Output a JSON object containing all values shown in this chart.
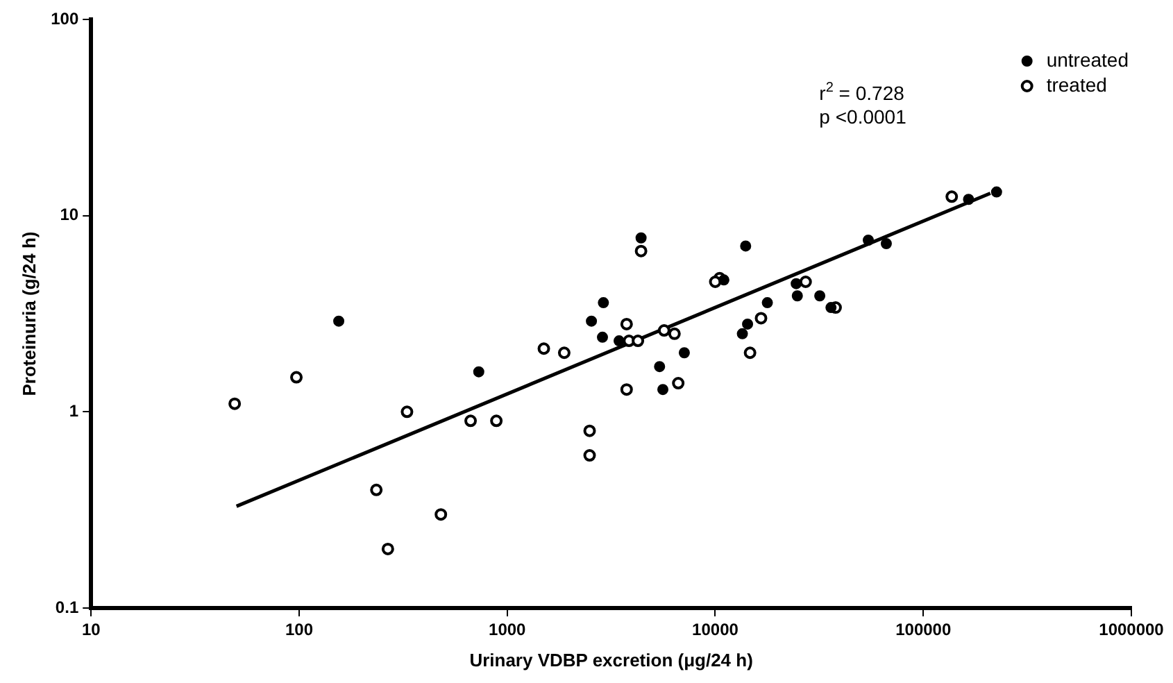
{
  "chart_data": {
    "type": "scatter",
    "xlabel": "Urinary VDBP excretion (μg/24 h)",
    "ylabel": "Proteinuria (g/24 h)",
    "log": "xy",
    "xlim": [
      10,
      1000000
    ],
    "xticks": [
      10,
      100,
      1000,
      10000,
      100000,
      1000000
    ],
    "ylim": [
      0.1,
      100
    ],
    "yticks": [
      0.1,
      1,
      10,
      100
    ],
    "grid": false,
    "legend": "top right",
    "annotations": [
      "r$^{2}$ = 0.728",
      "p <0.0001"
    ],
    "series": [
      {
        "name": "untreated",
        "color": "#000000",
        "marker": "circle",
        "x": [
          155,
          730,
          4400,
          14000,
          11000,
          24500,
          24800,
          17800,
          2900,
          2540,
          14300,
          2870,
          3450,
          13500,
          7100,
          5400,
          5600,
          165000,
          225000,
          54400,
          66400,
          31800,
          36000
        ],
        "values": [
          2.9,
          1.6,
          7.7,
          7.0,
          4.7,
          4.5,
          3.9,
          3.6,
          3.6,
          2.9,
          2.8,
          2.4,
          2.3,
          2.5,
          2.0,
          1.7,
          1.3,
          12.1,
          13.2,
          7.5,
          7.2,
          3.9,
          3.4
        ]
      },
      {
        "name": "treated",
        "color": "#000000",
        "marker": "circle-open",
        "x": [
          49,
          97,
          330,
          235,
          267,
          480,
          667,
          887,
          2490,
          2490,
          1500,
          1880,
          3750,
          3850,
          4250,
          5680,
          6370,
          3750,
          6640,
          4400,
          10500,
          10000,
          16600,
          14700,
          27200,
          37900,
          137000
        ],
        "values": [
          1.1,
          1.5,
          1.0,
          0.4,
          0.2,
          0.3,
          0.9,
          0.9,
          0.8,
          0.6,
          2.1,
          2.0,
          2.8,
          2.3,
          2.3,
          2.6,
          2.5,
          1.3,
          1.4,
          6.6,
          4.8,
          4.6,
          3.0,
          2.0,
          4.6,
          3.4,
          12.5
        ]
      },
      {
        "type": "line",
        "color": "#000000",
        "marker": "none",
        "x": [
          50,
          210000
        ],
        "values": [
          0.33,
          13
        ]
      }
    ]
  }
}
